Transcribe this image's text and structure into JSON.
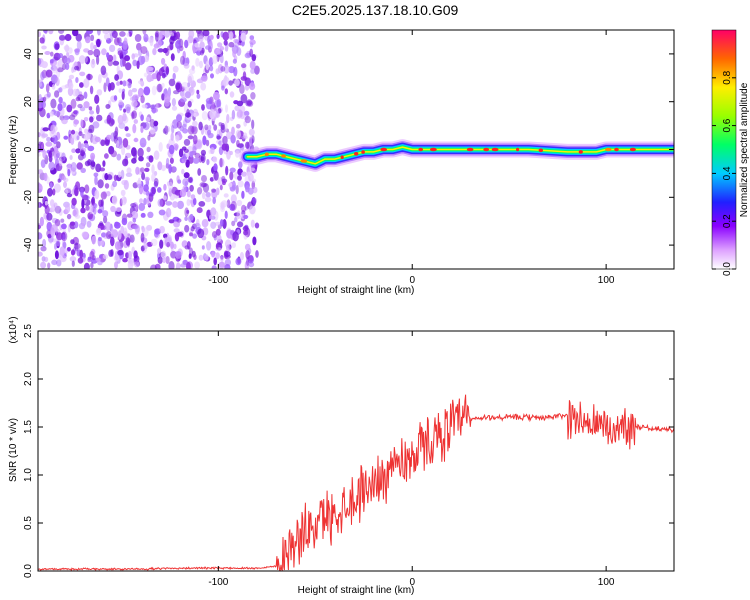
{
  "title": "C2E5.2025.137.18.10.G09",
  "chart_data": [
    {
      "type": "heatmap",
      "xlabel": "Height of straight line (km)",
      "ylabel": "Frequency (Hz)",
      "xlim": [
        -193,
        135
      ],
      "ylim": [
        -50,
        50
      ],
      "xticks": [
        -100,
        0,
        100
      ],
      "yticks": [
        -40,
        -20,
        0,
        20,
        40
      ],
      "colorbar": {
        "label": "Normalized spectral amplitude",
        "range": [
          0,
          1
        ],
        "ticks": [
          "0.0",
          "0.2",
          "0.4",
          "0.6",
          "0.8"
        ]
      },
      "signal_track": {
        "x": [
          -85,
          -80,
          -75,
          -70,
          -65,
          -60,
          -55,
          -50,
          -45,
          -40,
          -35,
          -30,
          -25,
          -20,
          -15,
          -10,
          -5,
          0,
          10,
          20,
          40,
          60,
          80,
          95,
          100,
          105,
          110,
          120,
          135
        ],
        "frequency": [
          -3,
          -3,
          -2,
          -2,
          -3,
          -4,
          -5,
          -6,
          -4,
          -4,
          -3,
          -2,
          -1,
          -1,
          0,
          0,
          1,
          0,
          0,
          0,
          0,
          0,
          -1,
          -1,
          0,
          0,
          0,
          0,
          0
        ]
      }
    },
    {
      "type": "line",
      "xlabel": "Height of straight line (km)",
      "ylabel": "SNR (10 * v/v)",
      "y_multiplier": "(x10⁴)",
      "xlim": [
        -193,
        135
      ],
      "ylim": [
        0,
        2.5
      ],
      "xticks": [
        -100,
        0,
        100
      ],
      "yticks": [
        0.0,
        0.5,
        1.0,
        1.5,
        2.0,
        2.5
      ],
      "color": "#ee3333",
      "series": [
        {
          "x": [
            -193,
            -180,
            -160,
            -140,
            -120,
            -100,
            -80,
            -70,
            -65,
            -60,
            -55,
            -50,
            -45,
            -40,
            -35,
            -30,
            -25,
            -20,
            -15,
            -10,
            -5,
            0,
            5,
            10,
            15,
            20,
            25,
            30,
            40,
            50,
            60,
            70,
            80,
            85,
            90,
            95,
            100,
            105,
            110,
            115,
            120,
            125,
            130,
            135
          ],
          "y": [
            0.02,
            0.02,
            0.02,
            0.02,
            0.03,
            0.03,
            0.03,
            0.05,
            0.2,
            0.3,
            0.4,
            0.5,
            0.55,
            0.6,
            0.7,
            0.75,
            0.85,
            0.9,
            1.0,
            1.1,
            1.15,
            1.2,
            1.3,
            1.35,
            1.45,
            1.5,
            1.55,
            1.58,
            1.6,
            1.6,
            1.6,
            1.6,
            1.62,
            1.6,
            1.55,
            1.5,
            1.5,
            1.45,
            1.55,
            1.5,
            1.5,
            1.48,
            1.48,
            1.47
          ]
        }
      ]
    }
  ]
}
